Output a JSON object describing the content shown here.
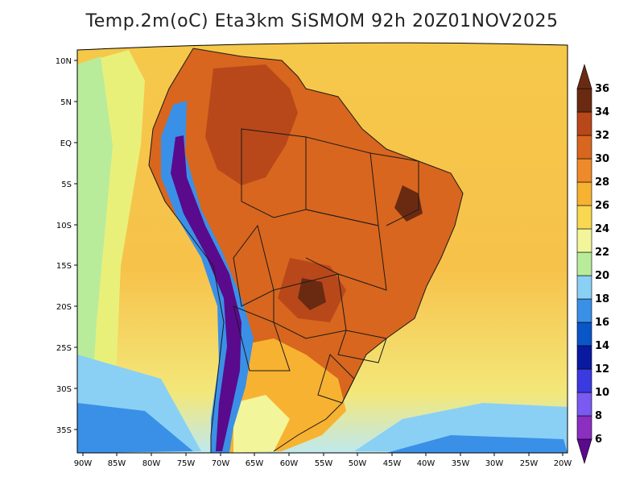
{
  "title": "Temp.2m(oC) Eta3km SiSMOM 92h 20Z01NOV2025",
  "latitude_labels": [
    "10N",
    "5N",
    "EQ",
    "5S",
    "10S",
    "15S",
    "20S",
    "25S",
    "30S",
    "35S"
  ],
  "longitude_labels": [
    "90W",
    "85W",
    "80W",
    "75W",
    "70W",
    "65W",
    "60W",
    "55W",
    "50W",
    "45W",
    "40W",
    "35W",
    "30W",
    "25W",
    "20W"
  ],
  "colorbar": {
    "values": [
      6,
      8,
      10,
      12,
      14,
      16,
      18,
      20,
      22,
      24,
      26,
      28,
      30,
      32,
      34,
      36
    ],
    "labels": [
      "6",
      "8",
      "10",
      "12",
      "14",
      "16",
      "18",
      "20",
      "22",
      "24",
      "26",
      "28",
      "30",
      "32",
      "34",
      "36"
    ],
    "colors": [
      "#5a0a8c",
      "#8a2fc0",
      "#7a5af0",
      "#3a3ae0",
      "#0a1aa0",
      "#0a55c8",
      "#3a90e6",
      "#8ad0f5",
      "#b8ec9a",
      "#f2f59a",
      "#f7d850",
      "#f7b232",
      "#ef8a2a",
      "#d8661e",
      "#b8481a",
      "#6a2a12"
    ]
  }
}
